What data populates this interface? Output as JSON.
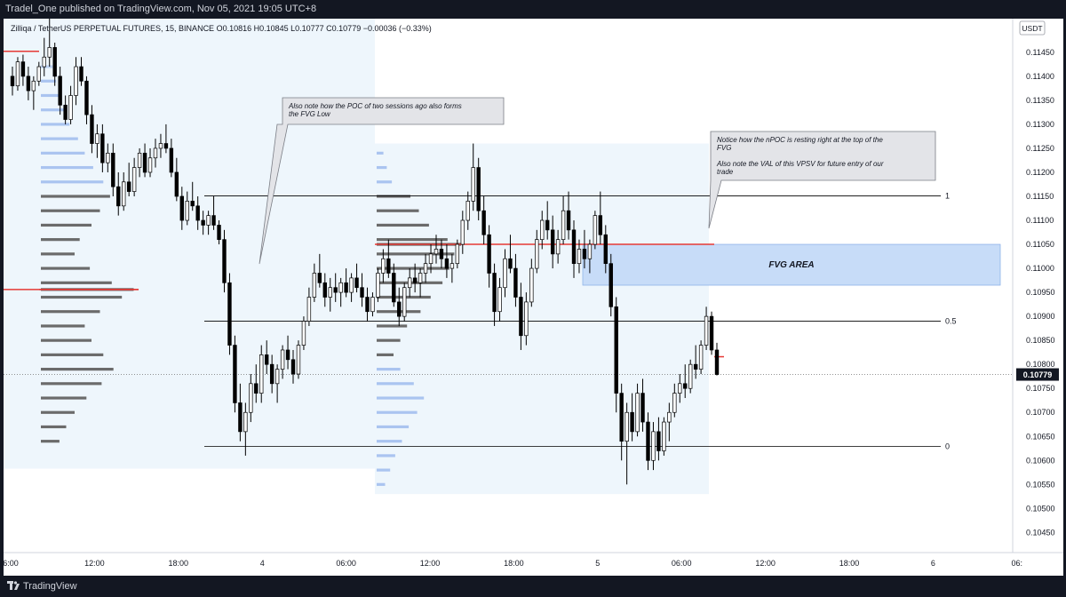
{
  "header": {
    "publisher_line": "Tradel_One published on TradingView.com, Nov 05, 2021 19:05 UTC+8"
  },
  "footer": {
    "brand": "TradingView"
  },
  "symbol_info": "Zilliqa / TetherUS PERPETUAL FUTURES, 15, BINANCE  O0.10816  H0.10845  L0.10777  C0.10779  −0.00036 (−0.33%)",
  "currency_label": "USDT",
  "current_price_label": "0.10779",
  "annotations": {
    "note1": [
      "Also note how the POC of two sessions ago also forms",
      "the FVG Low"
    ],
    "note2": [
      "Notice how the nPOC is resting right at the top of the",
      "FVG",
      "",
      "Also note the VAL of this VPSV for future entry of our",
      "trade"
    ],
    "fvg_label": "FVG AREA"
  },
  "colors": {
    "background": "#ffffff",
    "frame": "#131722",
    "up_candle": "#ffffff",
    "down_candle": "#000000",
    "poc_line": "#e53935",
    "fvg_fill": "#c7dcf8",
    "profile_blue": "#aac4f0",
    "profile_gray": "#6b6b6b",
    "session_fill": "#eef6fc"
  },
  "chart_data": {
    "type": "candlestick",
    "title": "Zilliqa / TetherUS PERPETUAL FUTURES, 15, BINANCE",
    "timeframe": "15",
    "ohlc_last": {
      "open": 0.10816,
      "high": 0.10845,
      "low": 0.10777,
      "close": 0.10779,
      "change": -0.00036,
      "change_pct": -0.33
    },
    "y_axis": {
      "ticks": [
        "0.11450",
        "0.11400",
        "0.11350",
        "0.11300",
        "0.11250",
        "0.11200",
        "0.11150",
        "0.11100",
        "0.11050",
        "0.11000",
        "0.10950",
        "0.10900",
        "0.10850",
        "0.10800",
        "0.10750",
        "0.10700",
        "0.10650",
        "0.10600",
        "0.10550",
        "0.10500",
        "0.10450"
      ],
      "range": [
        0.1041,
        0.1152
      ]
    },
    "x_axis": {
      "ticks": [
        "6:00",
        "12:00",
        "18:00",
        "4",
        "06:00",
        "12:00",
        "18:00",
        "5",
        "06:00",
        "12:00",
        "18:00",
        "6",
        "06:"
      ]
    },
    "fib_levels": [
      {
        "label": "1",
        "price": 0.11151
      },
      {
        "label": "0.5",
        "price": 0.1089
      },
      {
        "label": "0",
        "price": 0.10629
      }
    ],
    "poc_lines": [
      {
        "price": 0.11452
      },
      {
        "price": 0.10956
      },
      {
        "price": 0.1105
      }
    ],
    "fvg_zone": {
      "top": 0.1105,
      "bottom": 0.10965
    },
    "current_price": 0.10779,
    "last_close_marker": 0.10816,
    "candles": [
      [
        0.114,
        0.1142,
        0.1136,
        0.1138
      ],
      [
        0.1138,
        0.1144,
        0.1137,
        0.1143
      ],
      [
        0.1143,
        0.11445,
        0.1138,
        0.114
      ],
      [
        0.114,
        0.1142,
        0.1135,
        0.1137
      ],
      [
        0.1137,
        0.114,
        0.1133,
        0.1139
      ],
      [
        0.1139,
        0.1143,
        0.1138,
        0.1142
      ],
      [
        0.1142,
        0.1148,
        0.114,
        0.1144
      ],
      [
        0.1144,
        0.1152,
        0.1142,
        0.1146
      ],
      [
        0.1146,
        0.1147,
        0.1138,
        0.114
      ],
      [
        0.114,
        0.1142,
        0.1132,
        0.1134
      ],
      [
        0.1134,
        0.1136,
        0.113,
        0.1131
      ],
      [
        0.1131,
        0.1138,
        0.113,
        0.1136
      ],
      [
        0.1136,
        0.1144,
        0.1134,
        0.1142
      ],
      [
        0.1142,
        0.1144,
        0.1138,
        0.1139
      ],
      [
        0.1139,
        0.114,
        0.113,
        0.1132
      ],
      [
        0.1132,
        0.1134,
        0.1124,
        0.1126
      ],
      [
        0.1126,
        0.113,
        0.1123,
        0.1128
      ],
      [
        0.1128,
        0.113,
        0.112,
        0.1122
      ],
      [
        0.1122,
        0.1126,
        0.112,
        0.1124
      ],
      [
        0.1124,
        0.1126,
        0.1115,
        0.1117
      ],
      [
        0.1117,
        0.112,
        0.1111,
        0.1113
      ],
      [
        0.1113,
        0.112,
        0.1112,
        0.1118
      ],
      [
        0.1118,
        0.1122,
        0.1115,
        0.1116
      ],
      [
        0.1116,
        0.1123,
        0.1115,
        0.1121
      ],
      [
        0.1121,
        0.1125,
        0.1119,
        0.1124
      ],
      [
        0.1124,
        0.1126,
        0.1119,
        0.112
      ],
      [
        0.112,
        0.1125,
        0.1119,
        0.1123
      ],
      [
        0.1123,
        0.1127,
        0.1121,
        0.1125
      ],
      [
        0.1125,
        0.1128,
        0.1123,
        0.1126
      ],
      [
        0.1126,
        0.113,
        0.1124,
        0.1125
      ],
      [
        0.1125,
        0.1127,
        0.1119,
        0.112
      ],
      [
        0.112,
        0.1123,
        0.1114,
        0.1115
      ],
      [
        0.1115,
        0.1117,
        0.1108,
        0.111
      ],
      [
        0.111,
        0.1116,
        0.1109,
        0.1114
      ],
      [
        0.1114,
        0.1118,
        0.1112,
        0.1113
      ],
      [
        0.1113,
        0.1115,
        0.1108,
        0.111
      ],
      [
        0.111,
        0.1112,
        0.1107,
        0.1109
      ],
      [
        0.1109,
        0.1112,
        0.1107,
        0.1111
      ],
      [
        0.1111,
        0.1115,
        0.1108,
        0.1109
      ],
      [
        0.1109,
        0.111,
        0.1105,
        0.1106
      ],
      [
        0.1106,
        0.1108,
        0.1095,
        0.1097
      ],
      [
        0.1097,
        0.1099,
        0.1082,
        0.1084
      ],
      [
        0.1084,
        0.1086,
        0.107,
        0.1072
      ],
      [
        0.1072,
        0.1076,
        0.1064,
        0.1066
      ],
      [
        0.1066,
        0.1072,
        0.1061,
        0.107
      ],
      [
        0.107,
        0.1078,
        0.1068,
        0.1076
      ],
      [
        0.1076,
        0.108,
        0.1072,
        0.1074
      ],
      [
        0.1074,
        0.1084,
        0.1072,
        0.1082
      ],
      [
        0.1082,
        0.1085,
        0.1078,
        0.108
      ],
      [
        0.108,
        0.1082,
        0.1074,
        0.1076
      ],
      [
        0.1076,
        0.108,
        0.1072,
        0.1079
      ],
      [
        0.1079,
        0.1084,
        0.1077,
        0.1083
      ],
      [
        0.1083,
        0.1086,
        0.1079,
        0.1081
      ],
      [
        0.1081,
        0.1083,
        0.1076,
        0.1078
      ],
      [
        0.1078,
        0.1085,
        0.1077,
        0.1084
      ],
      [
        0.1084,
        0.109,
        0.1083,
        0.1089
      ],
      [
        0.1089,
        0.1096,
        0.1088,
        0.1094
      ],
      [
        0.1094,
        0.1101,
        0.1093,
        0.1099
      ],
      [
        0.1099,
        0.1103,
        0.1096,
        0.1097
      ],
      [
        0.1097,
        0.1099,
        0.1092,
        0.1094
      ],
      [
        0.1094,
        0.1098,
        0.1091,
        0.1096
      ],
      [
        0.1096,
        0.1099,
        0.1093,
        0.1095
      ],
      [
        0.1095,
        0.1098,
        0.1092,
        0.1097
      ],
      [
        0.1097,
        0.11,
        0.1094,
        0.1095
      ],
      [
        0.1095,
        0.1099,
        0.1093,
        0.1098
      ],
      [
        0.1098,
        0.1101,
        0.1095,
        0.1096
      ],
      [
        0.1096,
        0.1099,
        0.1092,
        0.1094
      ],
      [
        0.1094,
        0.1096,
        0.1089,
        0.1091
      ],
      [
        0.1091,
        0.1095,
        0.109,
        0.1094
      ],
      [
        0.1094,
        0.11,
        0.1093,
        0.1099
      ],
      [
        0.1099,
        0.1104,
        0.1097,
        0.1102
      ],
      [
        0.1102,
        0.1106,
        0.1098,
        0.1099
      ],
      [
        0.1099,
        0.1101,
        0.1092,
        0.1093
      ],
      [
        0.1093,
        0.1096,
        0.1088,
        0.109
      ],
      [
        0.109,
        0.1097,
        0.1089,
        0.1096
      ],
      [
        0.1096,
        0.11,
        0.1094,
        0.1098
      ],
      [
        0.1098,
        0.1101,
        0.1095,
        0.1097
      ],
      [
        0.1097,
        0.11,
        0.1094,
        0.1099
      ],
      [
        0.1099,
        0.1103,
        0.1097,
        0.1101
      ],
      [
        0.1101,
        0.1105,
        0.1099,
        0.1103
      ],
      [
        0.1103,
        0.1107,
        0.1101,
        0.1104
      ],
      [
        0.1104,
        0.1106,
        0.11,
        0.1102
      ],
      [
        0.1102,
        0.1105,
        0.1098,
        0.11
      ],
      [
        0.11,
        0.1103,
        0.1097,
        0.1101
      ],
      [
        0.1101,
        0.1106,
        0.11,
        0.1105
      ],
      [
        0.1105,
        0.1112,
        0.1103,
        0.111
      ],
      [
        0.111,
        0.1116,
        0.1108,
        0.1114
      ],
      [
        0.1114,
        0.1126,
        0.1112,
        0.1121
      ],
      [
        0.1121,
        0.1123,
        0.111,
        0.1112
      ],
      [
        0.1112,
        0.1115,
        0.1105,
        0.1107
      ],
      [
        0.1107,
        0.1109,
        0.1096,
        0.1099
      ],
      [
        0.1099,
        0.1101,
        0.1088,
        0.1091
      ],
      [
        0.1091,
        0.1098,
        0.1089,
        0.1096
      ],
      [
        0.1096,
        0.1104,
        0.1094,
        0.1102
      ],
      [
        0.1102,
        0.1107,
        0.1099,
        0.11
      ],
      [
        0.11,
        0.1103,
        0.1092,
        0.1094
      ],
      [
        0.1094,
        0.1097,
        0.1083,
        0.1086
      ],
      [
        0.1086,
        0.1095,
        0.1084,
        0.1093
      ],
      [
        0.1093,
        0.1102,
        0.1092,
        0.11
      ],
      [
        0.11,
        0.1108,
        0.1099,
        0.1106
      ],
      [
        0.1106,
        0.1112,
        0.1104,
        0.111
      ],
      [
        0.111,
        0.1114,
        0.1106,
        0.1108
      ],
      [
        0.1108,
        0.1111,
        0.11,
        0.1103
      ],
      [
        0.1103,
        0.1108,
        0.1101,
        0.1106
      ],
      [
        0.1106,
        0.1115,
        0.1105,
        0.1112
      ],
      [
        0.1112,
        0.1116,
        0.1106,
        0.1108
      ],
      [
        0.1108,
        0.111,
        0.1098,
        0.1101
      ],
      [
        0.1101,
        0.1106,
        0.1099,
        0.1104
      ],
      [
        0.1104,
        0.1108,
        0.11,
        0.1102
      ],
      [
        0.1102,
        0.1106,
        0.1099,
        0.1105
      ],
      [
        0.1105,
        0.1112,
        0.1104,
        0.1111
      ],
      [
        0.1111,
        0.1116,
        0.1105,
        0.1107
      ],
      [
        0.1107,
        0.1109,
        0.1099,
        0.1101
      ],
      [
        0.1101,
        0.1103,
        0.109,
        0.1092
      ],
      [
        0.1092,
        0.1094,
        0.107,
        0.1074
      ],
      [
        0.1074,
        0.1076,
        0.106,
        0.1064
      ],
      [
        0.1064,
        0.1072,
        0.1055,
        0.107
      ],
      [
        0.107,
        0.1074,
        0.1064,
        0.1066
      ],
      [
        0.1066,
        0.1076,
        0.1065,
        0.1074
      ],
      [
        0.1074,
        0.1077,
        0.1066,
        0.1068
      ],
      [
        0.1068,
        0.107,
        0.1058,
        0.106
      ],
      [
        0.106,
        0.1068,
        0.1058,
        0.1066
      ],
      [
        0.1066,
        0.1069,
        0.106,
        0.1062
      ],
      [
        0.1062,
        0.1069,
        0.1061,
        0.1068
      ],
      [
        0.1068,
        0.1072,
        0.1064,
        0.107
      ],
      [
        0.107,
        0.1076,
        0.1069,
        0.1074
      ],
      [
        0.1074,
        0.1078,
        0.1072,
        0.1076
      ],
      [
        0.1076,
        0.108,
        0.1073,
        0.1075
      ],
      [
        0.1075,
        0.1081,
        0.1074,
        0.108
      ],
      [
        0.108,
        0.1084,
        0.1077,
        0.1079
      ],
      [
        0.1079,
        0.1085,
        0.1078,
        0.1084
      ],
      [
        0.1084,
        0.1092,
        0.1083,
        0.109
      ],
      [
        0.109,
        0.1091,
        0.1082,
        0.1083
      ],
      [
        0.1083,
        0.10845,
        0.10777,
        0.10779
      ]
    ],
    "profiles": [
      {
        "session": 1,
        "value_area": [
          0.1062,
          0.114
        ],
        "poc": 0.10956,
        "rows": [
          [
            0.1142,
            14
          ],
          [
            0.1139,
            18
          ],
          [
            0.1136,
            22
          ],
          [
            0.1133,
            28
          ],
          [
            0.113,
            34
          ],
          [
            0.1127,
            44
          ],
          [
            0.1124,
            52
          ],
          [
            0.1121,
            62
          ],
          [
            0.1118,
            74
          ],
          [
            0.1115,
            82
          ],
          [
            0.1112,
            70
          ],
          [
            0.1109,
            60
          ],
          [
            0.1106,
            46
          ],
          [
            0.1103,
            40
          ],
          [
            0.11,
            58
          ],
          [
            0.1097,
            84
          ],
          [
            0.10956,
            110
          ],
          [
            0.1094,
            96
          ],
          [
            0.1091,
            70
          ],
          [
            0.1088,
            52
          ],
          [
            0.1085,
            60
          ],
          [
            0.1082,
            74
          ],
          [
            0.1079,
            86
          ],
          [
            0.1076,
            72
          ],
          [
            0.1073,
            54
          ],
          [
            0.107,
            40
          ],
          [
            0.1067,
            30
          ],
          [
            0.1064,
            22
          ]
        ]
      },
      {
        "session": 2,
        "value_area": [
          0.1053,
          0.1126
        ],
        "poc": 0.1105,
        "rows": [
          [
            0.1124,
            8
          ],
          [
            0.1121,
            12
          ],
          [
            0.1118,
            18
          ],
          [
            0.1115,
            40
          ],
          [
            0.1112,
            50
          ],
          [
            0.1109,
            62
          ],
          [
            0.1106,
            84
          ],
          [
            0.1105,
            100
          ],
          [
            0.1103,
            92
          ],
          [
            0.11,
            86
          ],
          [
            0.1097,
            78
          ],
          [
            0.1094,
            64
          ],
          [
            0.1091,
            52
          ],
          [
            0.1088,
            36
          ],
          [
            0.1085,
            28
          ],
          [
            0.1082,
            20
          ],
          [
            0.1079,
            28
          ],
          [
            0.1076,
            44
          ],
          [
            0.1073,
            56
          ],
          [
            0.107,
            48
          ],
          [
            0.1067,
            38
          ],
          [
            0.1064,
            30
          ],
          [
            0.1061,
            22
          ],
          [
            0.1058,
            16
          ],
          [
            0.1055,
            10
          ]
        ]
      }
    ]
  }
}
